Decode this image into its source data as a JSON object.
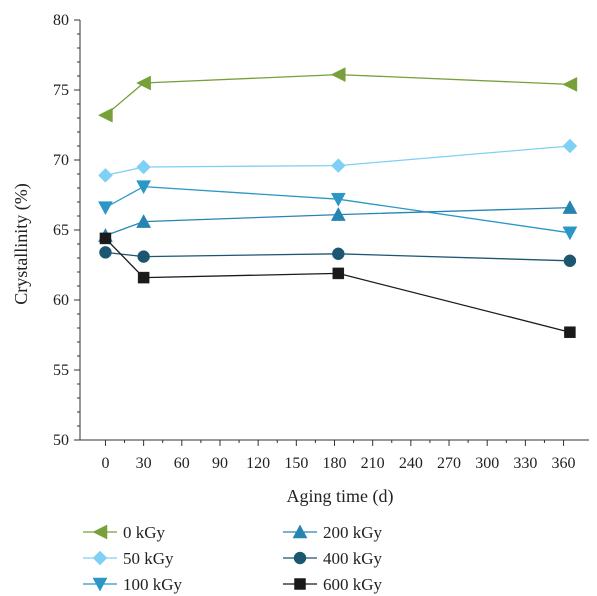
{
  "chart_data": {
    "type": "line",
    "title": "",
    "xlabel": "Aging time (d)",
    "ylabel": "Crystallinity (%)",
    "xlim": [
      -20,
      380
    ],
    "ylim": [
      50,
      80
    ],
    "x_ticks": [
      0,
      30,
      60,
      90,
      120,
      150,
      180,
      210,
      240,
      270,
      300,
      330,
      360
    ],
    "y_ticks": [
      50,
      55,
      60,
      65,
      70,
      75,
      80
    ],
    "x": [
      0,
      30,
      183,
      365
    ],
    "grid": false,
    "legend_position": "bottom",
    "series": [
      {
        "name": "0 kGy",
        "values": [
          73.2,
          75.5,
          76.1,
          75.4
        ],
        "color": "#77a03a",
        "marker": "triangle-left"
      },
      {
        "name": "50 kGy",
        "values": [
          68.9,
          69.5,
          69.6,
          71.0
        ],
        "color": "#7fd0f5",
        "marker": "diamond"
      },
      {
        "name": "100 kGy",
        "values": [
          66.6,
          68.1,
          67.2,
          64.8
        ],
        "color": "#2a97c6",
        "marker": "triangle-down"
      },
      {
        "name": "200 kGy",
        "values": [
          64.6,
          65.6,
          66.1,
          66.6
        ],
        "color": "#2784b1",
        "marker": "triangle-up"
      },
      {
        "name": "400 kGy",
        "values": [
          63.4,
          63.1,
          63.3,
          62.8
        ],
        "color": "#1c5670",
        "marker": "circle"
      },
      {
        "name": "600 kGy",
        "values": [
          64.4,
          61.6,
          61.9,
          57.7
        ],
        "color": "#1a1a1a",
        "marker": "square"
      }
    ]
  }
}
